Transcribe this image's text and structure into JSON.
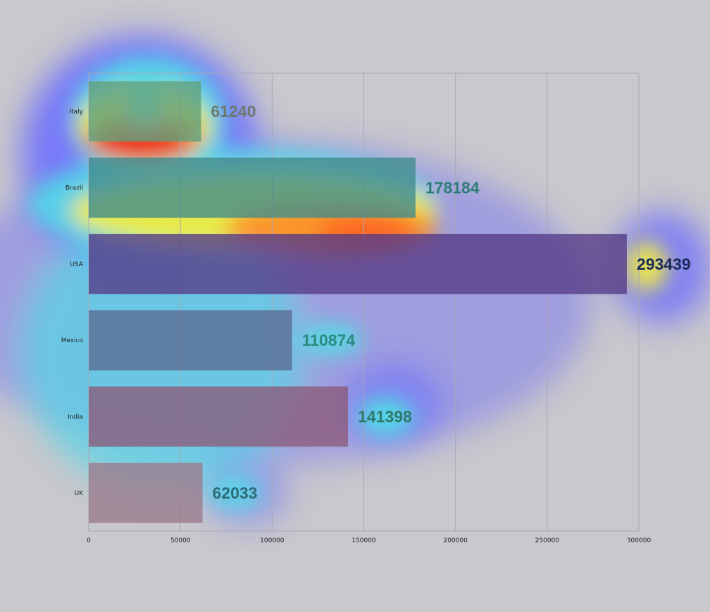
{
  "chart_data": {
    "type": "bar",
    "orientation": "horizontal",
    "categories": [
      "Italy",
      "Brazil",
      "USA",
      "Mexico",
      "India",
      "UK"
    ],
    "values": [
      61240,
      178184,
      293439,
      110874,
      141398,
      62033
    ],
    "value_labels": [
      "61240",
      "178184",
      "293439",
      "110874",
      "141398",
      "62033"
    ],
    "title": "",
    "xlabel": "",
    "ylabel": "",
    "xlim": [
      0,
      300000
    ],
    "x_ticks": [
      0,
      50000,
      100000,
      150000,
      200000,
      250000,
      300000
    ],
    "x_tick_labels": [
      "0",
      "50000",
      "100000",
      "150000",
      "200000",
      "250000",
      "300000"
    ],
    "grid": "vertical",
    "legend": "none",
    "bar_colors": [
      "#5fa07e",
      "#3f8a8c",
      "#553a86",
      "#5c6a92",
      "#8c5a7a",
      "#9a7a8c"
    ],
    "value_label_colors": [
      "#6b7a6a",
      "#2e7d78",
      "#1c2a5a",
      "#2e8a80",
      "#2e7a6c",
      "#2e6b7a"
    ],
    "overlay": "saliency heatmap (jet colormap)",
    "colors": {
      "background": "#c9c8cc",
      "plot_background": "#c8c7cc",
      "grid": "#a9a7b8"
    }
  }
}
